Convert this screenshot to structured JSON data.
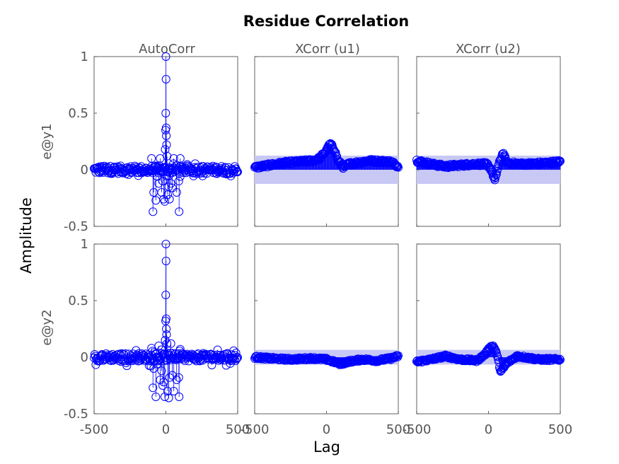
{
  "chart_data": {
    "type": "scatter",
    "title": "Residue Correlation",
    "xlabel": "Lag",
    "ylabel": "Amplitude",
    "column_titles": [
      "AutoCorr",
      "XCorr (u1)",
      "XCorr (u2)"
    ],
    "row_labels": [
      "e@y1",
      "e@y2"
    ],
    "xlim": [
      -500,
      500
    ],
    "ylim": [
      -0.5,
      1
    ],
    "x_ticks": [
      -500,
      0,
      500
    ],
    "x_tick_labels": [
      "-500",
      "0",
      "500"
    ],
    "y_ticks": [
      -0.5,
      0,
      0.5,
      1
    ],
    "y_tick_labels": [
      "-0.5",
      "0",
      "0.5",
      "1"
    ],
    "marker_color": "#0000ff",
    "band_color": "#c8c8f5",
    "lag_step": 4,
    "panels": [
      {
        "row": 0,
        "col": 0,
        "kind": "auto",
        "band": null,
        "noise_amp": 0.035,
        "spikes": [
          {
            "lag": 0,
            "value": 1.0
          },
          {
            "lag": 1,
            "value": 0.8
          },
          {
            "lag": -1,
            "value": 0.5
          },
          {
            "lag": 2,
            "value": 0.37
          },
          {
            "lag": -2,
            "value": 0.35
          },
          {
            "lag": 3,
            "value": 0.3
          },
          {
            "lag": 5,
            "value": 0.22
          },
          {
            "lag": -5,
            "value": 0.18
          },
          {
            "lag": 8,
            "value": 0.12
          },
          {
            "lag": -8,
            "value": -0.28
          },
          {
            "lag": 12,
            "value": -0.22
          },
          {
            "lag": -15,
            "value": -0.26
          },
          {
            "lag": 20,
            "value": -0.15
          },
          {
            "lag": -22,
            "value": -0.1
          },
          {
            "lag": 25,
            "value": -0.26
          },
          {
            "lag": -30,
            "value": -0.2
          },
          {
            "lag": 35,
            "value": -0.12
          },
          {
            "lag": -40,
            "value": 0.1
          },
          {
            "lag": 45,
            "value": -0.16
          },
          {
            "lag": -50,
            "value": -0.12
          },
          {
            "lag": 55,
            "value": 0.1
          },
          {
            "lag": -60,
            "value": -0.06
          },
          {
            "lag": -70,
            "value": -0.27
          },
          {
            "lag": 75,
            "value": -0.2
          },
          {
            "lag": -90,
            "value": -0.37
          },
          {
            "lag": -85,
            "value": -0.2
          },
          {
            "lag": 90,
            "value": -0.1
          },
          {
            "lag": 92,
            "value": -0.37
          },
          {
            "lag": -100,
            "value": 0.1
          },
          {
            "lag": 100,
            "value": 0.1
          }
        ]
      },
      {
        "row": 0,
        "col": 1,
        "kind": "xcorr",
        "band": [
          -0.125,
          0.125
        ],
        "baseline": [
          {
            "lag": -500,
            "value": 0.02
          },
          {
            "lag": -300,
            "value": 0.06
          },
          {
            "lag": -100,
            "value": 0.08
          },
          {
            "lag": -50,
            "value": 0.1
          },
          {
            "lag": 0,
            "value": 0.17
          },
          {
            "lag": 25,
            "value": 0.23
          },
          {
            "lag": 55,
            "value": 0.18
          },
          {
            "lag": 80,
            "value": 0.08
          },
          {
            "lag": 120,
            "value": 0.02
          },
          {
            "lag": 150,
            "value": 0.05
          },
          {
            "lag": 300,
            "value": 0.08
          },
          {
            "lag": 450,
            "value": 0.07
          },
          {
            "lag": 500,
            "value": 0.03
          }
        ],
        "noise_amp": 0.015
      },
      {
        "row": 0,
        "col": 2,
        "kind": "xcorr",
        "band": [
          -0.125,
          0.125
        ],
        "baseline": [
          {
            "lag": -500,
            "value": 0.08
          },
          {
            "lag": -400,
            "value": 0.05
          },
          {
            "lag": -300,
            "value": 0.03
          },
          {
            "lag": -100,
            "value": 0.05
          },
          {
            "lag": -10,
            "value": 0.05
          },
          {
            "lag": 20,
            "value": 0.0
          },
          {
            "lag": 45,
            "value": -0.1
          },
          {
            "lag": 65,
            "value": 0.02
          },
          {
            "lag": 100,
            "value": 0.15
          },
          {
            "lag": 130,
            "value": 0.06
          },
          {
            "lag": 250,
            "value": 0.05
          },
          {
            "lag": 400,
            "value": 0.06
          },
          {
            "lag": 500,
            "value": 0.07
          }
        ],
        "noise_amp": 0.015
      },
      {
        "row": 1,
        "col": 0,
        "kind": "auto",
        "band": null,
        "noise_amp": 0.035,
        "spikes": [
          {
            "lag": 0,
            "value": 1.0
          },
          {
            "lag": 1,
            "value": 0.85
          },
          {
            "lag": -1,
            "value": 0.55
          },
          {
            "lag": 2,
            "value": 0.34
          },
          {
            "lag": -2,
            "value": 0.32
          },
          {
            "lag": 3,
            "value": 0.25
          },
          {
            "lag": 5,
            "value": 0.2
          },
          {
            "lag": -5,
            "value": 0.15
          },
          {
            "lag": 8,
            "value": 0.12
          },
          {
            "lag": -8,
            "value": -0.35
          },
          {
            "lag": 12,
            "value": -0.3
          },
          {
            "lag": -15,
            "value": -0.22
          },
          {
            "lag": 20,
            "value": -0.36
          },
          {
            "lag": -22,
            "value": -0.25
          },
          {
            "lag": 25,
            "value": -0.18
          },
          {
            "lag": -30,
            "value": -0.12
          },
          {
            "lag": 35,
            "value": 0.12
          },
          {
            "lag": -40,
            "value": -0.2
          },
          {
            "lag": 45,
            "value": -0.16
          },
          {
            "lag": -50,
            "value": 0.1
          },
          {
            "lag": 55,
            "value": -0.3
          },
          {
            "lag": -60,
            "value": -0.06
          },
          {
            "lag": -70,
            "value": -0.35
          },
          {
            "lag": 75,
            "value": -0.2
          },
          {
            "lag": -90,
            "value": -0.27
          },
          {
            "lag": -85,
            "value": -0.1
          },
          {
            "lag": 90,
            "value": -0.18
          },
          {
            "lag": 92,
            "value": -0.35
          },
          {
            "lag": -100,
            "value": 0.08
          },
          {
            "lag": 100,
            "value": 0.07
          }
        ]
      },
      {
        "row": 1,
        "col": 1,
        "kind": "xcorr",
        "band": [
          -0.065,
          0.065
        ],
        "baseline": [
          {
            "lag": -500,
            "value": 0.0
          },
          {
            "lag": -400,
            "value": -0.01
          },
          {
            "lag": -250,
            "value": -0.02
          },
          {
            "lag": -100,
            "value": -0.01
          },
          {
            "lag": 0,
            "value": -0.02
          },
          {
            "lag": 100,
            "value": -0.06
          },
          {
            "lag": 150,
            "value": -0.04
          },
          {
            "lag": 250,
            "value": -0.02
          },
          {
            "lag": 350,
            "value": -0.03
          },
          {
            "lag": 450,
            "value": -0.01
          },
          {
            "lag": 500,
            "value": 0.01
          }
        ],
        "noise_amp": 0.012
      },
      {
        "row": 1,
        "col": 2,
        "kind": "xcorr",
        "band": [
          -0.065,
          0.065
        ],
        "baseline": [
          {
            "lag": -500,
            "value": -0.04
          },
          {
            "lag": -400,
            "value": -0.02
          },
          {
            "lag": -300,
            "value": 0.01
          },
          {
            "lag": -200,
            "value": -0.02
          },
          {
            "lag": -80,
            "value": -0.03
          },
          {
            "lag": -20,
            "value": 0.03
          },
          {
            "lag": 10,
            "value": 0.09
          },
          {
            "lag": 35,
            "value": 0.1
          },
          {
            "lag": 60,
            "value": 0.02
          },
          {
            "lag": 85,
            "value": -0.13
          },
          {
            "lag": 130,
            "value": -0.05
          },
          {
            "lag": 200,
            "value": 0.01
          },
          {
            "lag": 350,
            "value": -0.02
          },
          {
            "lag": 500,
            "value": -0.02
          }
        ],
        "noise_amp": 0.012
      }
    ]
  }
}
